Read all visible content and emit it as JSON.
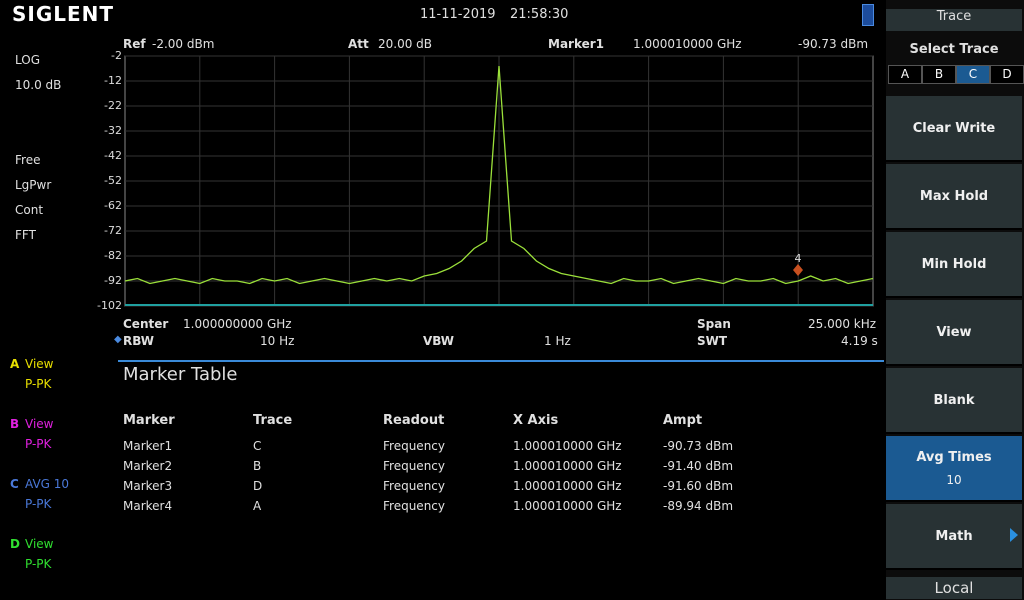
{
  "header": {
    "brand": "SIGLENT",
    "date": "11-11-2019",
    "time": "21:58:30"
  },
  "left_panel": {
    "scale_type": "LOG",
    "scale_div": "10.0 dB",
    "modes": [
      "Free",
      "LgPwr",
      "Cont",
      "FFT"
    ]
  },
  "traces": [
    {
      "letter": "A",
      "mode": "View",
      "detector": "P-PK",
      "color": "#e8e000"
    },
    {
      "letter": "B",
      "mode": "View",
      "detector": "P-PK",
      "color": "#e020e0"
    },
    {
      "letter": "C",
      "mode": "AVG 10",
      "detector": "P-PK",
      "color": "#4a78d8"
    },
    {
      "letter": "D",
      "mode": "View",
      "detector": "P-PK",
      "color": "#30e030"
    }
  ],
  "top_bar": {
    "ref_label": "Ref",
    "ref_value": "-2.00 dBm",
    "att_label": "Att",
    "att_value": "20.00 dB",
    "marker_label": "Marker1",
    "marker_freq": "1.000010000 GHz",
    "marker_ampt": "-90.73 dBm"
  },
  "chart_data": {
    "type": "line",
    "ylim": [
      -102,
      -2
    ],
    "yticks": [
      -2,
      -12,
      -22,
      -32,
      -42,
      -52,
      -62,
      -72,
      -82,
      -92,
      -102
    ],
    "grid": true,
    "series": [
      {
        "color": "#9be03a",
        "values": [
          -92,
          -91,
          -93,
          -92,
          -91,
          -92,
          -93,
          -91,
          -92,
          -92,
          -93,
          -91,
          -92,
          -91,
          -93,
          -92,
          -91,
          -92,
          -93,
          -92,
          -91,
          -92,
          -91,
          -92,
          -90,
          -89,
          -87,
          -84,
          -79,
          -76,
          -6,
          -76,
          -79,
          -84,
          -87,
          -89,
          -90,
          -91,
          -92,
          -93,
          -91,
          -92,
          -92,
          -91,
          -93,
          -92,
          -91,
          -92,
          -93,
          -91,
          -92,
          -92,
          -91,
          -93,
          -92,
          -90,
          -92,
          -91,
          -93,
          -92,
          -91
        ]
      }
    ],
    "marker_label": "4"
  },
  "bottom_bar": {
    "center_label": "Center",
    "center_value": "1.000000000 GHz",
    "span_label": "Span",
    "span_value": "25.000 kHz",
    "rbw_label": "RBW",
    "rbw_value": "10 Hz",
    "vbw_label": "VBW",
    "vbw_value": "1 Hz",
    "swt_label": "SWT",
    "swt_value": "4.19 s"
  },
  "marker_table": {
    "title": "Marker Table",
    "columns": [
      "Marker",
      "Trace",
      "Readout",
      "X Axis",
      "Ampt"
    ],
    "rows": [
      [
        "Marker1",
        "C",
        "Frequency",
        "1.000010000 GHz",
        "-90.73 dBm"
      ],
      [
        "Marker2",
        "B",
        "Frequency",
        "1.000010000 GHz",
        "-91.40 dBm"
      ],
      [
        "Marker3",
        "D",
        "Frequency",
        "1.000010000 GHz",
        "-91.60 dBm"
      ],
      [
        "Marker4",
        "A",
        "Frequency",
        "1.000010000 GHz",
        "-89.94 dBm"
      ]
    ]
  },
  "menu": {
    "title": "Trace",
    "select_label": "Select Trace",
    "trace_options": [
      "A",
      "B",
      "C",
      "D"
    ],
    "buttons": [
      {
        "label": "Clear Write"
      },
      {
        "label": "Max Hold"
      },
      {
        "label": "Min Hold"
      },
      {
        "label": "View"
      },
      {
        "label": "Blank"
      },
      {
        "label": "Avg Times",
        "value": "10"
      },
      {
        "label": "Math"
      }
    ],
    "footer": "Local"
  }
}
